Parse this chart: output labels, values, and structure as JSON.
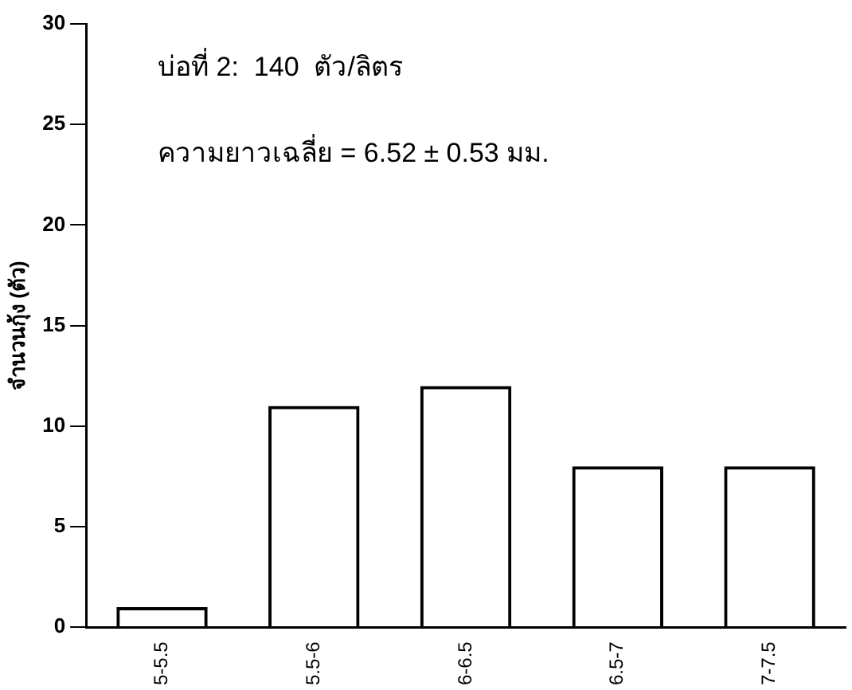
{
  "chart_data": {
    "type": "bar",
    "ylabel": "จำนวนกุ้ง (ตัว)",
    "categories": [
      "5-5.5",
      "5.5-6",
      "6-6.5",
      "6.5-7",
      "7-7.5"
    ],
    "values": [
      1,
      11,
      12,
      8,
      8
    ],
    "color": "#000000",
    "ylim": [
      0,
      30
    ],
    "yticks": [
      0,
      5,
      10,
      15,
      20,
      25,
      30
    ],
    "grid": false,
    "legend": false,
    "annotations": [
      "บ่อที่ 2:  140  ตัว/ลิตร",
      "ความยาวเฉลี่ย = 6.52 ± 0.53 มม."
    ]
  }
}
